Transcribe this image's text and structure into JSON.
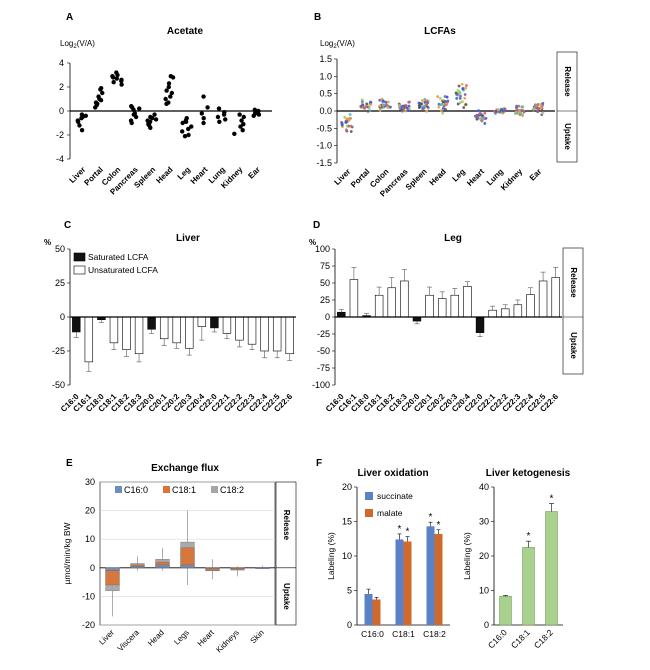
{
  "chart_data": [
    {
      "panel": "A",
      "type": "scatter",
      "title": "Acetate",
      "ylabel": "Log2(V/A)",
      "ylim": [
        -4,
        4
      ],
      "yticks": [
        4,
        2,
        0,
        -2,
        -4
      ],
      "categories": [
        "Liver",
        "Portal",
        "Colon",
        "Pancreas",
        "Spleen",
        "Head",
        "Leg",
        "Heart",
        "Lung",
        "Kidney",
        "Ear"
      ],
      "points": [
        [
          -0.3,
          -0.5,
          -0.9,
          -1.2,
          -0.6,
          -1.6,
          -0.8,
          -0.4
        ],
        [
          1.8,
          1.2,
          0.6,
          1.5,
          0.9,
          0.3,
          1.0,
          0.5,
          1.9,
          0.7
        ],
        [
          3.0,
          2.7,
          2.4,
          2.9,
          2.5,
          2.2,
          2.8,
          3.2,
          2.6
        ],
        [
          0.4,
          0.1,
          -0.2,
          -0.5,
          0.3,
          -0.8,
          0.2,
          -0.3,
          -1.0
        ],
        [
          -0.6,
          -0.9,
          -1.1,
          -0.3,
          -0.5,
          -1.4,
          -0.8,
          -0.7,
          -1.2
        ],
        [
          2.8,
          2.3,
          1.7,
          1.2,
          0.7,
          1.5,
          2.9,
          1.0,
          0.6,
          2.0
        ],
        [
          -1.0,
          -1.7,
          -0.8,
          -2.0,
          -1.5,
          -1.3,
          -2.1,
          -0.9,
          -0.6
        ],
        [
          1.2,
          0.3,
          -0.6,
          -1.0,
          -0.2
        ],
        [
          0.2,
          -0.3,
          -0.5,
          -0.9,
          -0.1,
          -0.7
        ],
        [
          -0.5,
          -1.1,
          -1.6,
          -0.8,
          -1.3,
          -0.3,
          -1.9
        ],
        [
          0.1,
          -0.2,
          -0.4,
          -0.1,
          0.0,
          -0.3
        ]
      ]
    },
    {
      "panel": "B",
      "type": "scatter",
      "title": "LCFAs",
      "ylabel": "Log2(V/A)",
      "ylim": [
        -1.5,
        1.5
      ],
      "yticks": [
        1.5,
        1.0,
        0.5,
        0.0,
        -0.5,
        -1.0,
        -1.5
      ],
      "side_labels": [
        "Release",
        "Uptake"
      ],
      "categories": [
        "Liver",
        "Portal",
        "Colon",
        "Pancreas",
        "Spleen",
        "Head",
        "Leg",
        "Heart",
        "Lung",
        "Kidney",
        "Ear"
      ],
      "centers": [
        -0.35,
        0.15,
        0.15,
        0.12,
        0.15,
        0.22,
        0.4,
        -0.2,
        0.0,
        0.02,
        0.05
      ],
      "spreads": [
        0.3,
        0.2,
        0.2,
        0.18,
        0.2,
        0.3,
        0.45,
        0.3,
        0.12,
        0.18,
        0.18
      ],
      "point_colors": [
        "#3b5bdb",
        "#e8a33d",
        "#9ccc65",
        "#4fb3bf",
        "#7b5ea7",
        "#e05c5c",
        "#555555"
      ]
    },
    {
      "panel": "C",
      "type": "bar",
      "title": "Liver",
      "ylabel": "%",
      "ylim": [
        -50,
        50
      ],
      "yticks": [
        50,
        25,
        0,
        -25,
        -50
      ],
      "legend": [
        "Saturated LCFA",
        "Unsaturated LCFA"
      ],
      "categories": [
        "C16:0",
        "C16:1",
        "C18:0",
        "C18:1",
        "C18:2",
        "C18:3",
        "C20:0",
        "C20:1",
        "C20:2",
        "C20:3",
        "C20:4",
        "C22:0",
        "C22:1",
        "C22:2",
        "C22:3",
        "C22:4",
        "C22:5",
        "C22:6"
      ],
      "saturated": [
        true,
        false,
        true,
        false,
        false,
        false,
        true,
        false,
        false,
        false,
        false,
        true,
        false,
        false,
        false,
        false,
        false,
        false
      ],
      "values": [
        -11,
        -33,
        -2,
        -19,
        -24,
        -27,
        -9,
        -16,
        -19,
        -23,
        -7,
        -8,
        -12,
        -17,
        -20,
        -25,
        -25,
        -27
      ],
      "errors": [
        4,
        7,
        2,
        5,
        5,
        6,
        3,
        5,
        4,
        5,
        10,
        3,
        4,
        5,
        4,
        5,
        5,
        5
      ]
    },
    {
      "panel": "D",
      "type": "bar",
      "title": "Leg",
      "ylabel": "%",
      "ylim": [
        -100,
        100
      ],
      "yticks": [
        100,
        75,
        50,
        25,
        0,
        -25,
        -50,
        -75,
        -100
      ],
      "side_labels": [
        "Release",
        "Uptake"
      ],
      "categories": [
        "C16:0",
        "C16:1",
        "C18:0",
        "C18:1",
        "C18:2",
        "C18:3",
        "C20:0",
        "C20:1",
        "C20:2",
        "C20:3",
        "C20:4",
        "C22:0",
        "C22:1",
        "C22:2",
        "C22:3",
        "C22:4",
        "C22:5",
        "C22:6"
      ],
      "saturated": [
        true,
        false,
        true,
        false,
        false,
        false,
        true,
        false,
        false,
        false,
        false,
        true,
        false,
        false,
        false,
        false,
        false,
        false
      ],
      "values": [
        7,
        55,
        2,
        32,
        43,
        53,
        -6,
        32,
        27,
        32,
        45,
        -23,
        10,
        12,
        18,
        33,
        53,
        58
      ],
      "errors": [
        4,
        18,
        3,
        12,
        15,
        17,
        4,
        12,
        10,
        10,
        7,
        6,
        6,
        6,
        7,
        10,
        13,
        15
      ]
    },
    {
      "panel": "E",
      "type": "bar",
      "title": "Exchange flux",
      "ylabel": "µmol/min/kg BW",
      "ylim": [
        -20,
        30
      ],
      "yticks": [
        30,
        20,
        10,
        0,
        -10,
        -20
      ],
      "side_labels": [
        "Release",
        "Uptake"
      ],
      "categories": [
        "Liver",
        "Viscera",
        "Head",
        "Legs",
        "Heart",
        "Kidneys",
        "Skin"
      ],
      "legend": [
        {
          "name": "C16:0",
          "color": "#6c8ebf"
        },
        {
          "name": "C18:1",
          "color": "#d9753a"
        },
        {
          "name": "C18:2",
          "color": "#a6a6a6"
        }
      ],
      "series": [
        {
          "name": "C16:0",
          "values": [
            -1,
            0.5,
            1,
            1,
            -0.3,
            -0.3,
            0.1
          ]
        },
        {
          "name": "C18:1",
          "values": [
            -6,
            1,
            2,
            7,
            -1,
            -0.8,
            0.1
          ]
        },
        {
          "name": "C18:2",
          "values": [
            -8,
            1.5,
            3,
            9,
            -1,
            -0.5,
            0.1
          ]
        }
      ],
      "whiskers": [
        [
          -17,
          0
        ],
        [
          -1,
          4
        ],
        [
          -1,
          7
        ],
        [
          -6,
          20
        ],
        [
          -4,
          3
        ],
        [
          -3,
          0.5
        ],
        [
          -0.5,
          0.8
        ]
      ]
    },
    {
      "panel": "F",
      "type": "bar",
      "title": "Liver oxidation",
      "ylabel": "Labeling (%)",
      "ylim": [
        0,
        20
      ],
      "yticks": [
        20,
        15,
        10,
        5,
        0
      ],
      "categories": [
        "C16:0",
        "C18:1",
        "C18:2"
      ],
      "series": [
        {
          "name": "succinate",
          "values": [
            4.5,
            12.4,
            14.3
          ],
          "errors": [
            0.7,
            0.8,
            0.6
          ]
        },
        {
          "name": "malate",
          "values": [
            3.7,
            12.1,
            13.2
          ],
          "errors": [
            0.3,
            0.7,
            0.6
          ]
        }
      ],
      "significance": [
        "",
        "*",
        "*"
      ]
    },
    {
      "panel": "F",
      "type": "bar",
      "title": "Liver ketogenesis",
      "ylabel": "Labeling (%)",
      "ylim": [
        0,
        40
      ],
      "yticks": [
        40,
        30,
        20,
        10,
        0
      ],
      "categories": [
        "C16:0",
        "C18:1",
        "C18:2"
      ],
      "values": [
        8.3,
        22.5,
        32.9
      ],
      "errors": [
        0.3,
        1.8,
        2.3
      ],
      "significance": [
        "",
        "*",
        "*"
      ]
    }
  ],
  "panel_letters": [
    "A",
    "B",
    "C",
    "D",
    "E",
    "F"
  ],
  "colors": {
    "axis": "#000000",
    "saturated_bar": "#111111",
    "unsaturated_bar": "#ffffff",
    "succinate": "#5b82c6",
    "malate": "#d06a2c",
    "ketogenesis": "#a9d18e",
    "grid": "#d9d9d9"
  }
}
